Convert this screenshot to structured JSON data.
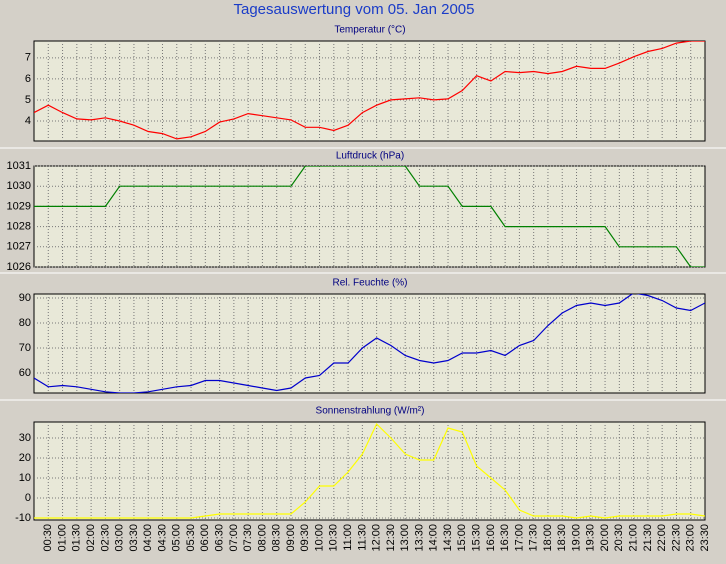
{
  "title": "Tagesauswertung vom 05. Jan 2005",
  "chart_data": [
    {
      "type": "line",
      "title": "Temperatur (°C)",
      "color": "#ff0000",
      "values": [
        4.4,
        4.75,
        4.4,
        4.1,
        4.05,
        4.15,
        4.0,
        3.8,
        3.5,
        3.4,
        3.15,
        3.25,
        3.5,
        3.95,
        4.1,
        4.35,
        4.25,
        4.15,
        4.05,
        3.7,
        3.7,
        3.55,
        3.8,
        4.4,
        4.75,
        5.0,
        5.05,
        5.1,
        5.0,
        5.05,
        5.45,
        6.15,
        5.9,
        6.35,
        6.3,
        6.35,
        6.25,
        6.35,
        6.6,
        6.5,
        6.5,
        6.75,
        7.05,
        7.3,
        7.45,
        7.7,
        7.8,
        7.8
      ],
      "ylim": [
        3.05,
        7.8
      ],
      "yticks": [
        4,
        5,
        6,
        7
      ],
      "grid": true
    },
    {
      "type": "line",
      "title": "Luftdruck (hPa)",
      "color": "#008000",
      "values": [
        1029,
        1029,
        1029,
        1029,
        1029,
        1029,
        1030,
        1030,
        1030,
        1030,
        1030,
        1030,
        1030,
        1030,
        1030,
        1030,
        1030,
        1030,
        1030,
        1031,
        1031,
        1031,
        1031,
        1031,
        1031,
        1031,
        1031,
        1030,
        1030,
        1030,
        1029,
        1029,
        1029,
        1028,
        1028,
        1028,
        1028,
        1028,
        1028,
        1028,
        1028,
        1027,
        1027,
        1027,
        1027,
        1027,
        1026,
        1026
      ],
      "ylim": [
        1026,
        1031
      ],
      "yticks": [
        1026,
        1027,
        1028,
        1029,
        1030,
        1031
      ],
      "grid": true
    },
    {
      "type": "line",
      "title": "Rel. Feuchte (%)",
      "color": "#0000cc",
      "values": [
        58,
        54.5,
        55,
        54.5,
        53.5,
        52.5,
        52,
        52,
        52.5,
        53.5,
        54.5,
        55,
        57,
        57,
        56,
        55,
        54,
        53,
        54,
        58,
        59,
        64,
        64,
        70,
        74,
        71,
        67,
        65,
        64,
        65,
        68,
        68,
        69,
        67,
        71,
        73,
        79,
        84,
        87,
        88,
        87,
        88,
        92,
        91,
        89,
        86,
        85,
        88
      ],
      "ylim": [
        52,
        91.6
      ],
      "yticks": [
        60,
        70,
        80,
        90
      ],
      "grid": true
    },
    {
      "type": "line",
      "title": "Sonnenstrahlung (W/m²)",
      "color": "#ffff00",
      "categories": [
        null,
        "00:30",
        "01:00",
        "01:30",
        "02:00",
        "02:30",
        "03:00",
        "03:30",
        "04:00",
        "04:30",
        "05:00",
        "05:30",
        "06:00",
        "06:30",
        "07:00",
        "07:30",
        "08:00",
        "08:30",
        "09:00",
        "09:30",
        "10:00",
        "10:30",
        "11:00",
        "11:30",
        "12:00",
        "12:30",
        "13:00",
        "13:30",
        "14:00",
        "14:30",
        "15:00",
        "15:30",
        "16:00",
        "16:30",
        "17:00",
        "17:30",
        "18:00",
        "18:30",
        "19:00",
        "19:30",
        "20:00",
        "20:30",
        "21:00",
        "21:30",
        "22:00",
        "22:30",
        "23:00",
        "23:30"
      ],
      "values": [
        -10,
        -10,
        -10,
        -10,
        -10,
        -10,
        -10,
        -10,
        -10,
        -10,
        -10,
        -10,
        -9,
        -8,
        -8,
        -8,
        -8,
        -8,
        -8,
        -2,
        6,
        6,
        13,
        22,
        37,
        30,
        22,
        19,
        19,
        35,
        33,
        16,
        10,
        4,
        -6,
        -9,
        -9,
        -9,
        -10,
        -9,
        -10,
        -9,
        -9,
        -9,
        -9,
        -8,
        -8,
        -9
      ],
      "ylim": [
        -11,
        38
      ],
      "yticks": [
        -10,
        0,
        10,
        20,
        30
      ],
      "grid": true
    }
  ]
}
